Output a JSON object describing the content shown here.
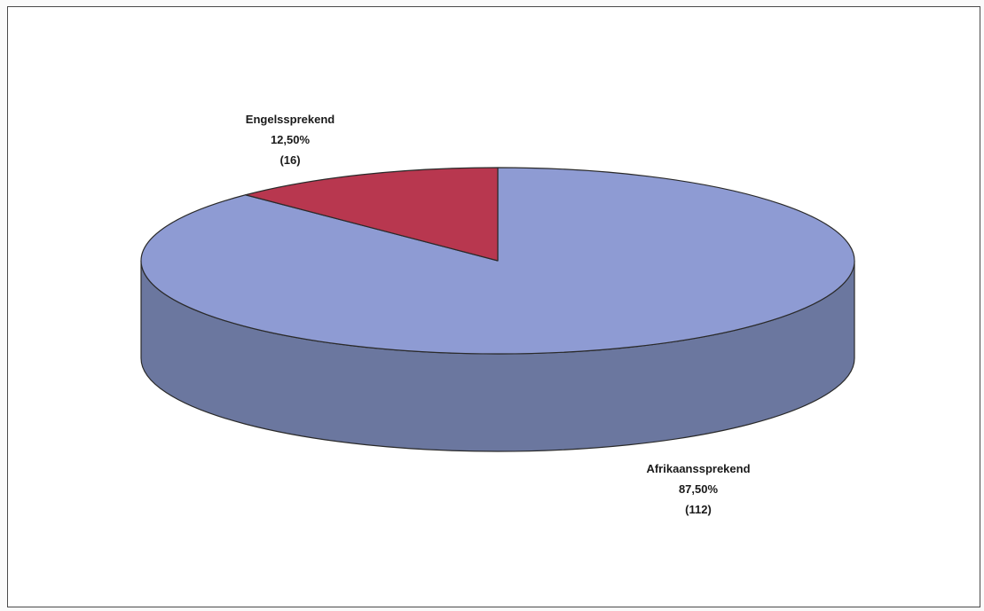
{
  "chart_data": {
    "type": "pie",
    "style": "3d",
    "title": "",
    "slices": [
      {
        "category": "Afrikaanssprekend",
        "value": 112,
        "percent_label": "87,50%",
        "count_label": "(112)",
        "color": "#8e9bd3",
        "side_color": "#6b779f"
      },
      {
        "category": "Engelssprekend",
        "value": 16,
        "percent_label": "12,50%",
        "count_label": "(16)",
        "color": "#b8374f",
        "side_color": "#7f2435"
      }
    ],
    "legend": "none"
  }
}
